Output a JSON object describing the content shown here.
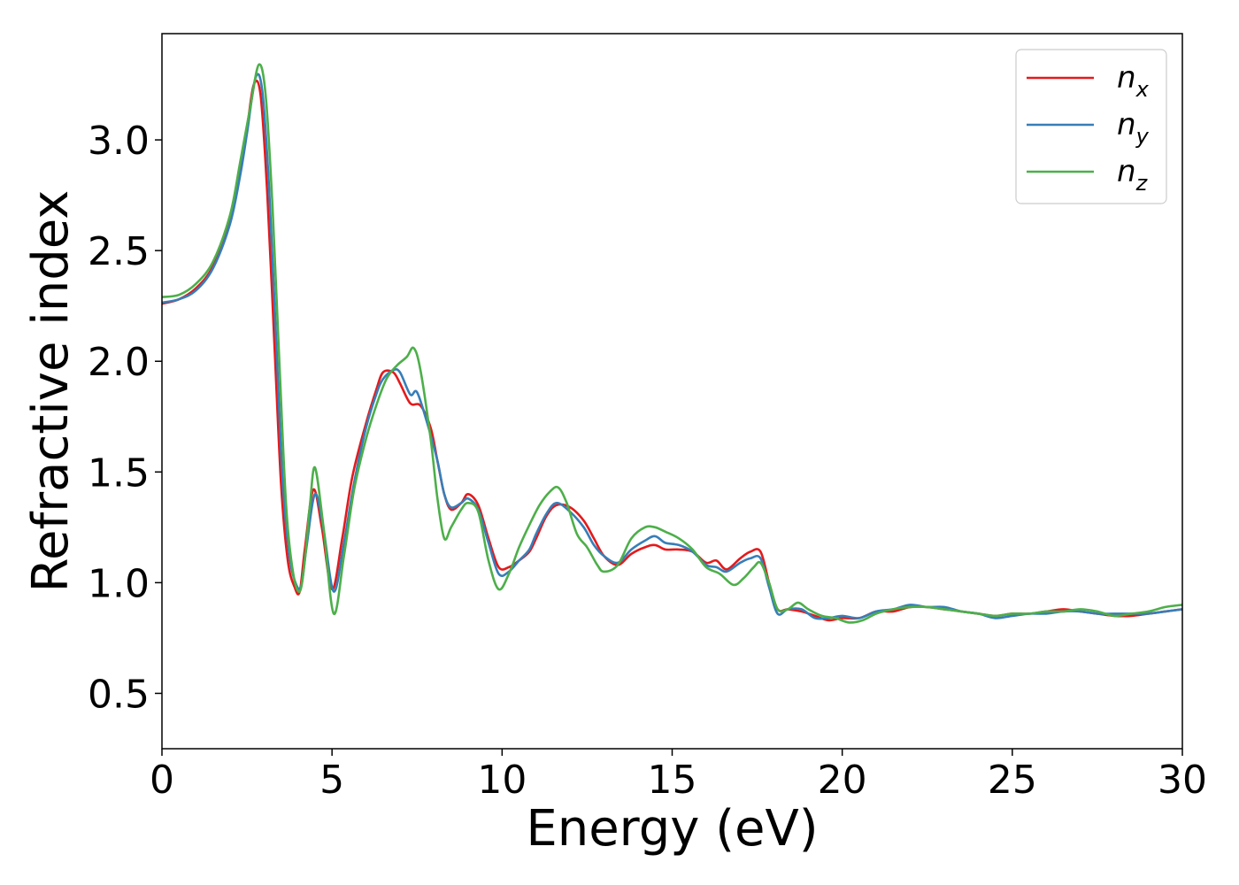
{
  "chart_data": {
    "type": "line",
    "title": "",
    "xlabel": "Energy (eV)",
    "ylabel": "Refractive index",
    "xlim": [
      0,
      30
    ],
    "ylim": [
      0.25,
      3.48
    ],
    "xticks": [
      0,
      5,
      10,
      15,
      20,
      25,
      30
    ],
    "xtick_labels": [
      "0",
      "5",
      "10",
      "15",
      "20",
      "25",
      "30"
    ],
    "yticks": [
      0.5,
      1.0,
      1.5,
      2.0,
      2.5,
      3.0
    ],
    "ytick_labels": [
      "0.5",
      "1.0",
      "1.5",
      "2.0",
      "2.5",
      "3.0"
    ],
    "grid": false,
    "legend_position": "top-right",
    "series": [
      {
        "name": "n_x",
        "label_main": "n",
        "label_sub": "x",
        "color": "#e41a1c",
        "x": [
          0,
          0.5,
          1.0,
          1.5,
          2.0,
          2.3,
          2.5,
          2.7,
          2.9,
          3.1,
          3.3,
          3.5,
          3.7,
          3.9,
          4.05,
          4.2,
          4.45,
          4.7,
          5.0,
          5.3,
          5.6,
          6.0,
          6.3,
          6.5,
          6.8,
          7.0,
          7.3,
          7.6,
          7.9,
          8.1,
          8.3,
          8.5,
          8.8,
          9.0,
          9.3,
          9.6,
          9.9,
          10.2,
          10.5,
          10.8,
          11.0,
          11.3,
          11.6,
          12.0,
          12.4,
          12.7,
          13.0,
          13.4,
          13.8,
          14.2,
          14.5,
          14.8,
          15.2,
          15.6,
          16.0,
          16.3,
          16.6,
          17.0,
          17.3,
          17.6,
          17.85,
          18.1,
          18.4,
          18.8,
          19.2,
          19.6,
          20.0,
          20.5,
          21.0,
          21.5,
          22.0,
          22.5,
          23.0,
          23.5,
          24.0,
          24.5,
          25.0,
          25.5,
          26.0,
          26.5,
          27.0,
          27.5,
          28.0,
          28.5,
          29.0,
          29.5,
          30.0
        ],
        "y": [
          2.26,
          2.28,
          2.33,
          2.43,
          2.64,
          2.86,
          3.05,
          3.25,
          3.2,
          2.75,
          2.1,
          1.45,
          1.1,
          0.98,
          0.96,
          1.15,
          1.42,
          1.25,
          0.97,
          1.2,
          1.48,
          1.72,
          1.87,
          1.95,
          1.95,
          1.9,
          1.81,
          1.8,
          1.7,
          1.55,
          1.4,
          1.33,
          1.36,
          1.4,
          1.35,
          1.2,
          1.07,
          1.07,
          1.1,
          1.14,
          1.2,
          1.3,
          1.35,
          1.34,
          1.28,
          1.2,
          1.12,
          1.08,
          1.13,
          1.16,
          1.17,
          1.15,
          1.15,
          1.14,
          1.09,
          1.1,
          1.06,
          1.11,
          1.14,
          1.14,
          1.0,
          0.88,
          0.88,
          0.87,
          0.85,
          0.83,
          0.84,
          0.84,
          0.87,
          0.87,
          0.89,
          0.89,
          0.88,
          0.87,
          0.86,
          0.85,
          0.86,
          0.86,
          0.87,
          0.88,
          0.87,
          0.86,
          0.85,
          0.85,
          0.86,
          0.87,
          0.88
        ]
      },
      {
        "name": "n_y",
        "label_main": "n",
        "label_sub": "y",
        "color": "#377eb8",
        "x": [
          0,
          0.5,
          1.0,
          1.5,
          2.0,
          2.3,
          2.5,
          2.75,
          2.95,
          3.15,
          3.35,
          3.55,
          3.75,
          3.95,
          4.1,
          4.25,
          4.5,
          4.75,
          5.05,
          5.35,
          5.65,
          6.0,
          6.3,
          6.5,
          6.8,
          7.0,
          7.3,
          7.5,
          7.8,
          8.1,
          8.3,
          8.5,
          8.8,
          9.0,
          9.3,
          9.6,
          9.9,
          10.2,
          10.5,
          10.8,
          11.0,
          11.3,
          11.6,
          12.0,
          12.4,
          12.7,
          13.0,
          13.4,
          13.8,
          14.2,
          14.5,
          14.8,
          15.2,
          15.6,
          16.0,
          16.3,
          16.6,
          17.0,
          17.3,
          17.6,
          17.85,
          18.1,
          18.4,
          18.8,
          19.2,
          19.6,
          20.0,
          20.5,
          21.0,
          21.5,
          22.0,
          22.5,
          23.0,
          23.5,
          24.0,
          24.5,
          25.0,
          25.5,
          26.0,
          26.5,
          27.0,
          27.5,
          28.0,
          28.5,
          29.0,
          29.5,
          30.0
        ],
        "y": [
          2.265,
          2.28,
          2.32,
          2.42,
          2.62,
          2.84,
          3.03,
          3.28,
          3.22,
          2.78,
          2.12,
          1.46,
          1.12,
          0.99,
          0.99,
          1.16,
          1.4,
          1.24,
          0.96,
          1.18,
          1.45,
          1.7,
          1.85,
          1.92,
          1.96,
          1.95,
          1.85,
          1.86,
          1.72,
          1.55,
          1.4,
          1.34,
          1.36,
          1.38,
          1.33,
          1.18,
          1.04,
          1.05,
          1.1,
          1.15,
          1.22,
          1.31,
          1.36,
          1.32,
          1.25,
          1.17,
          1.12,
          1.09,
          1.15,
          1.19,
          1.21,
          1.18,
          1.17,
          1.14,
          1.08,
          1.07,
          1.05,
          1.09,
          1.11,
          1.11,
          0.98,
          0.86,
          0.88,
          0.88,
          0.84,
          0.84,
          0.85,
          0.84,
          0.87,
          0.88,
          0.9,
          0.89,
          0.89,
          0.87,
          0.86,
          0.84,
          0.85,
          0.86,
          0.86,
          0.87,
          0.87,
          0.86,
          0.86,
          0.86,
          0.86,
          0.87,
          0.88
        ]
      },
      {
        "name": "n_z",
        "label_main": "n",
        "label_sub": "z",
        "color": "#4daf4a",
        "x": [
          0,
          0.5,
          1.0,
          1.5,
          2.0,
          2.3,
          2.6,
          2.85,
          3.05,
          3.25,
          3.45,
          3.65,
          3.85,
          4.05,
          4.2,
          4.35,
          4.5,
          4.75,
          5.05,
          5.35,
          5.65,
          6.0,
          6.3,
          6.6,
          6.9,
          7.2,
          7.4,
          7.6,
          7.9,
          8.1,
          8.3,
          8.5,
          8.8,
          9.0,
          9.3,
          9.6,
          9.9,
          10.2,
          10.5,
          10.8,
          11.1,
          11.4,
          11.65,
          11.9,
          12.2,
          12.5,
          12.8,
          13.0,
          13.4,
          13.8,
          14.2,
          14.5,
          14.8,
          15.2,
          15.6,
          16.0,
          16.4,
          16.8,
          17.1,
          17.4,
          17.6,
          17.85,
          18.1,
          18.4,
          18.7,
          19.0,
          19.4,
          19.8,
          20.2,
          20.6,
          21.0,
          21.5,
          22.0,
          22.5,
          23.0,
          23.5,
          24.0,
          24.5,
          25.0,
          25.5,
          26.0,
          26.5,
          27.0,
          27.5,
          28.0,
          28.5,
          29.0,
          29.5,
          30.0
        ],
        "y": [
          2.29,
          2.3,
          2.35,
          2.45,
          2.66,
          2.9,
          3.15,
          3.34,
          3.2,
          2.7,
          2.0,
          1.35,
          1.05,
          0.96,
          1.1,
          1.35,
          1.52,
          1.25,
          0.86,
          1.12,
          1.42,
          1.65,
          1.8,
          1.92,
          1.98,
          2.02,
          2.06,
          1.96,
          1.65,
          1.38,
          1.2,
          1.25,
          1.33,
          1.36,
          1.32,
          1.1,
          0.97,
          1.04,
          1.16,
          1.26,
          1.35,
          1.41,
          1.43,
          1.36,
          1.22,
          1.16,
          1.08,
          1.05,
          1.08,
          1.2,
          1.25,
          1.25,
          1.23,
          1.2,
          1.15,
          1.07,
          1.04,
          0.99,
          1.02,
          1.07,
          1.09,
          1.0,
          0.88,
          0.88,
          0.91,
          0.88,
          0.85,
          0.84,
          0.82,
          0.83,
          0.86,
          0.88,
          0.89,
          0.89,
          0.88,
          0.87,
          0.86,
          0.85,
          0.86,
          0.86,
          0.87,
          0.87,
          0.88,
          0.87,
          0.85,
          0.86,
          0.87,
          0.89,
          0.9
        ]
      }
    ]
  }
}
